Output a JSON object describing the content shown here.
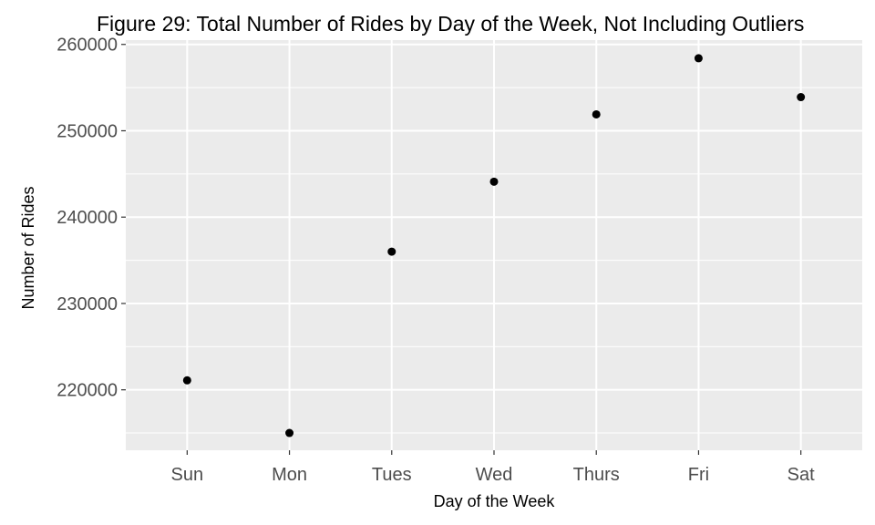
{
  "chart_data": {
    "type": "scatter",
    "title": "Figure 29: Total Number of Rides by Day of the Week, Not Including Outliers",
    "xlabel": "Day of the Week",
    "ylabel": "Number of Rides",
    "categories": [
      "Sun",
      "Mon",
      "Tues",
      "Wed",
      "Thurs",
      "Fri",
      "Sat"
    ],
    "values": [
      221100,
      215000,
      236000,
      244100,
      251900,
      258400,
      253900
    ],
    "ylim": [
      213000,
      260500
    ],
    "yticks": [
      220000,
      230000,
      240000,
      250000,
      260000
    ],
    "ytick_labels": [
      "220000",
      "230000",
      "240000",
      "250000",
      "260000"
    ],
    "grid": true,
    "legend": "none",
    "colors": {
      "panel": "#ebebeb",
      "grid": "#ffffff",
      "point": "#000000",
      "tick_text": "#4d4d4d"
    }
  }
}
